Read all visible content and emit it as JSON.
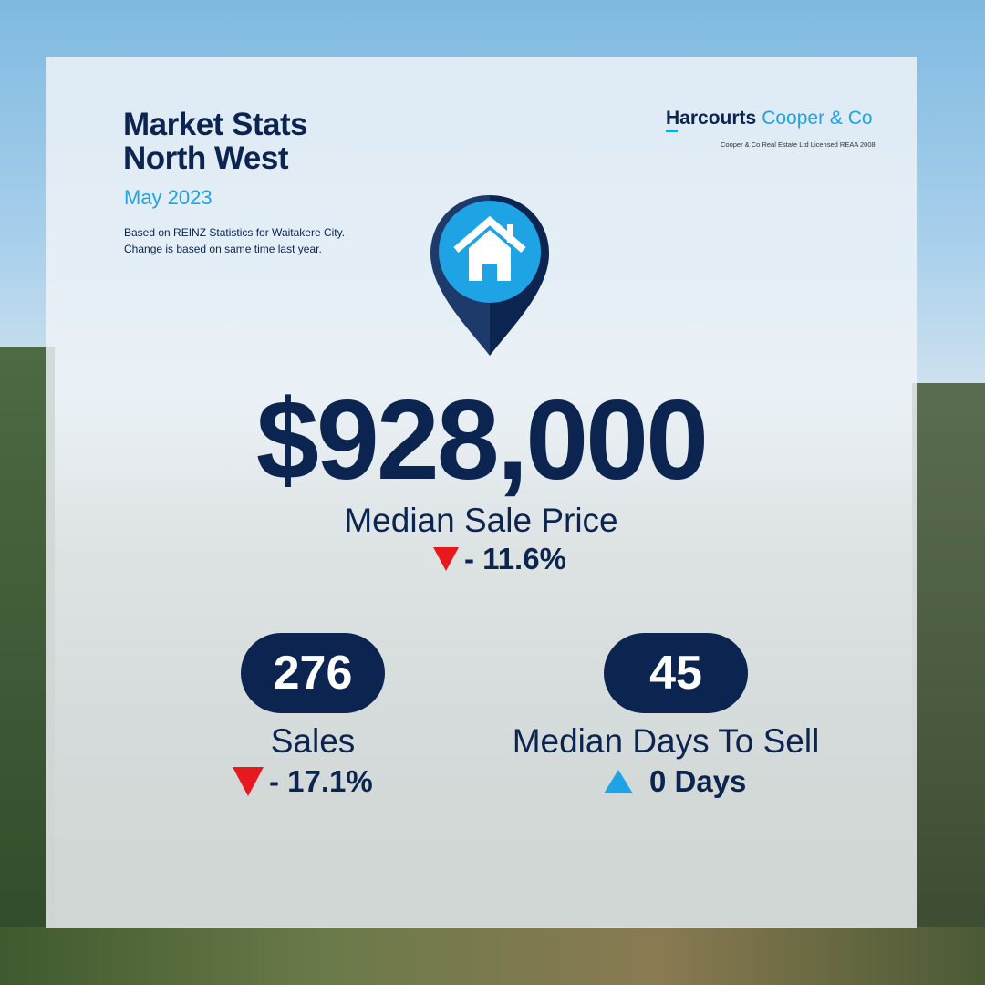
{
  "header": {
    "title_line1": "Market Stats",
    "title_line2": "North West",
    "date": "May 2023",
    "note_line1": "Based on REINZ Statistics for Waitakere City.",
    "note_line2": "Change is based on same time last year."
  },
  "brand": {
    "logo_primary": "Harcourts",
    "logo_secondary": "Cooper & Co",
    "licence": "Cooper & Co Real Estate Ltd Licensed REAA 2008"
  },
  "price": {
    "value": "$928,000",
    "label": "Median Sale Price",
    "change": "- 11.6%",
    "direction": "down"
  },
  "sales": {
    "value": "276",
    "label": "Sales",
    "change": "- 17.1%",
    "direction": "down"
  },
  "days": {
    "value": "45",
    "label": "Median Days To Sell",
    "change": "0 Days",
    "direction": "up"
  },
  "colors": {
    "navy": "#0b2550",
    "accent": "#1ea3e4",
    "down": "#e8191e"
  },
  "icons": [
    "house-pin-icon",
    "triangle-down-icon",
    "triangle-up-icon"
  ]
}
